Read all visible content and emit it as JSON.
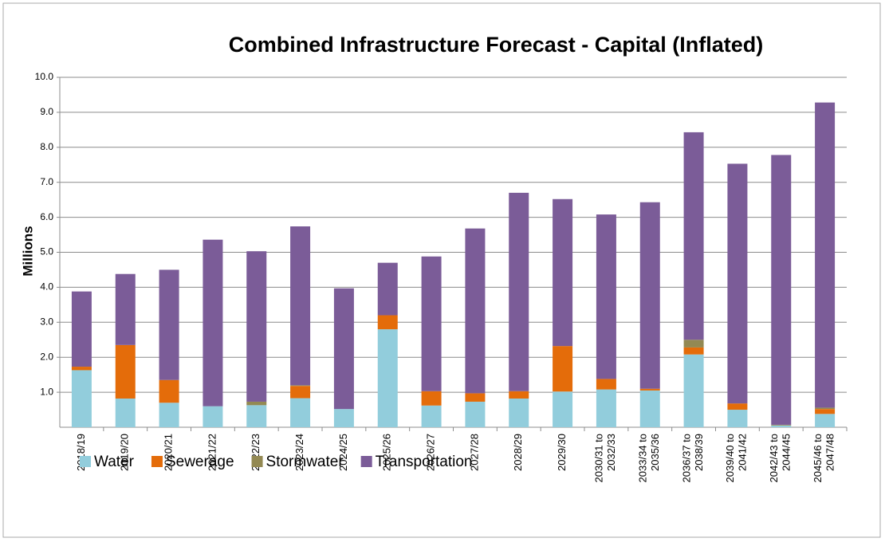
{
  "chart_data": {
    "type": "stacked_bar",
    "title": "Combined Infrastructure Forecast - Capital (Inflated)",
    "y_label": "Millions",
    "categories": [
      "2018/19",
      "2019/20",
      "2020/21",
      "2021/22",
      "2022/23",
      "2023/24",
      "2024/25",
      "2025/26",
      "2026/27",
      "2027/28",
      "2028/29",
      "2029/30",
      "2030/31 to 2032/33",
      "2033/34 to 2035/36",
      "2036/37 to 2038/39",
      "2039/40 to 2041/42",
      "2042/43 to 2044/45",
      "2045/46 to 2047/48"
    ],
    "series": [
      {
        "name": "Water",
        "color": "#92cddc",
        "values": [
          1.63,
          0.82,
          0.7,
          0.6,
          0.63,
          0.83,
          0.52,
          2.8,
          0.62,
          0.73,
          0.82,
          1.02,
          1.08,
          1.05,
          2.08,
          0.5,
          0.05,
          0.38
        ]
      },
      {
        "name": "Sewerage",
        "color": "#e46c0a",
        "values": [
          0.1,
          1.53,
          0.65,
          0,
          0,
          0.35,
          0,
          0.4,
          0.41,
          0.24,
          0.21,
          1.3,
          0.3,
          0.05,
          0.2,
          0.18,
          0,
          0.14
        ]
      },
      {
        "name": "Stormwater",
        "color": "#938953",
        "values": [
          0,
          0,
          0,
          0,
          0.1,
          0.02,
          0,
          0,
          0,
          0,
          0,
          0,
          0,
          0,
          0.22,
          0,
          0.02,
          0.04
        ]
      },
      {
        "name": "Transportation",
        "color": "#7b5c98",
        "values": [
          2.15,
          2.03,
          3.15,
          4.76,
          4.3,
          4.54,
          3.45,
          1.5,
          3.85,
          4.71,
          5.67,
          4.2,
          4.7,
          5.33,
          5.93,
          6.85,
          7.71,
          8.72
        ]
      }
    ],
    "ylim": [
      0,
      10
    ],
    "yticks": [
      {
        "value": 1,
        "label": "1.0"
      },
      {
        "value": 2,
        "label": "2.0"
      },
      {
        "value": 3,
        "label": "3.0"
      },
      {
        "value": 4,
        "label": "4.0"
      },
      {
        "value": 5,
        "label": "5.0"
      },
      {
        "value": 6,
        "label": "6.0"
      },
      {
        "value": 7,
        "label": "7.0"
      },
      {
        "value": 8,
        "label": "8.0"
      },
      {
        "value": 9,
        "label": "9.0"
      },
      {
        "value": 10,
        "label": "10.0"
      }
    ],
    "grid": true,
    "legend": "bottom-left"
  }
}
